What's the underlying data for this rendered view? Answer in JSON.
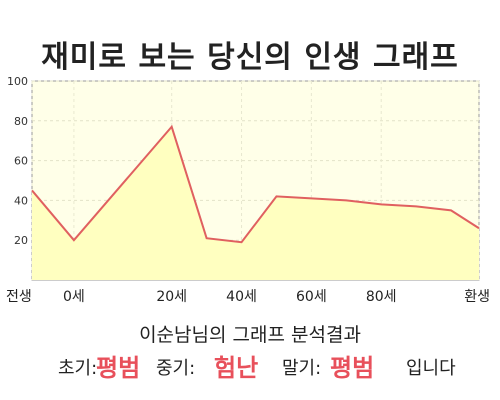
{
  "title": "재미로 보는 당신의 인생 그래프",
  "subtitle": "이순남님의 그래프 분석결과",
  "summary": {
    "early_label": "초기:",
    "early_value": "평범",
    "middle_label": "중기:",
    "middle_value": "험난",
    "late_label": "말기:",
    "late_value": "평범",
    "ending": "입니다"
  },
  "colors": {
    "line": "#e06060",
    "fill": "#ffffc0",
    "plot_bg": "#ffffe8",
    "highlight": "#e8505b"
  },
  "chart_data": {
    "type": "area",
    "x": [
      0,
      6,
      20,
      25,
      30,
      35,
      40,
      45,
      50,
      55,
      60,
      64
    ],
    "x_tick_values": [
      0,
      6,
      20,
      30,
      40,
      50,
      64
    ],
    "x_tick_labels": [
      "전생",
      "0세",
      "20세",
      "40세",
      "60세",
      "80세",
      "환생"
    ],
    "y": [
      45,
      20,
      77,
      21,
      19,
      42,
      41,
      40,
      38,
      37,
      35,
      26
    ],
    "ylim": [
      0,
      100
    ],
    "xlim": [
      0,
      64
    ],
    "y_ticks": [
      20,
      40,
      60,
      80,
      100
    ],
    "grid": true
  }
}
